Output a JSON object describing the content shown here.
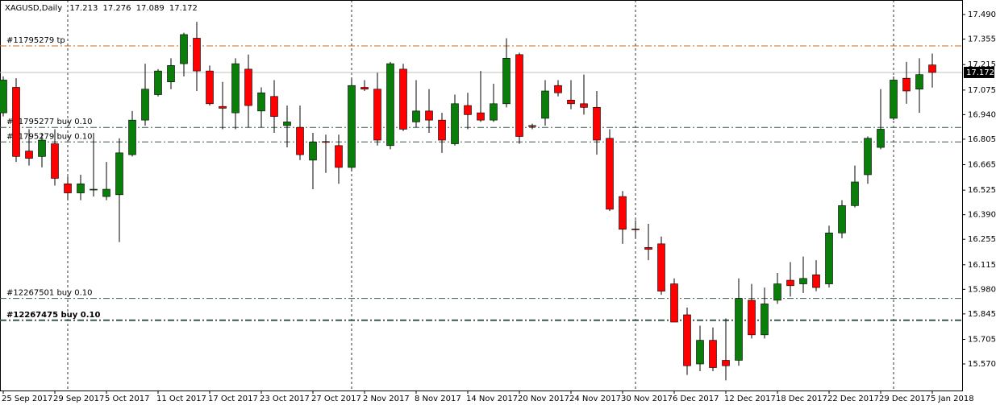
{
  "chart_data": {
    "type": "candlestick",
    "title": "XAGUSD,Daily",
    "categories": [
      "25 Sep 2017",
      null,
      null,
      null,
      "29 Sep 2017",
      null,
      null,
      null,
      "5 Oct 2017",
      null,
      null,
      null,
      "11 Oct 2017",
      null,
      null,
      null,
      "17 Oct 2017",
      null,
      null,
      null,
      "23 Oct 2017",
      null,
      null,
      null,
      "27 Oct 2017",
      null,
      null,
      null,
      "2 Nov 2017",
      null,
      null,
      null,
      "8 Nov 2017",
      null,
      null,
      null,
      "14 Nov 2017",
      null,
      null,
      null,
      "20 Nov 2017",
      null,
      null,
      null,
      "24 Nov 2017",
      null,
      null,
      null,
      "30 Nov 2017",
      null,
      null,
      null,
      "6 Dec 2017",
      null,
      null,
      null,
      "12 Dec 2017",
      null,
      null,
      null,
      "18 Dec 2017",
      null,
      null,
      null,
      "22 Dec 2017",
      null,
      null,
      null,
      "29 Dec 2017",
      null,
      null,
      null,
      "5 Jan 2018"
    ],
    "open": [
      16.95,
      17.09,
      16.74,
      16.71,
      16.78,
      16.56,
      16.51,
      16.53,
      16.49,
      16.5,
      16.72,
      16.91,
      17.05,
      17.12,
      17.22,
      17.36,
      17.18,
      16.985,
      16.95,
      17.19,
      16.96,
      17.04,
      16.88,
      16.87,
      16.69,
      16.792,
      16.77,
      16.65,
      17.09,
      17.08,
      16.77,
      17.19,
      16.9,
      16.96,
      16.91,
      16.78,
      16.99,
      16.95,
      16.91,
      17.0,
      17.27,
      16.88,
      16.92,
      17.1,
      17.02,
      17.0,
      16.98,
      16.81,
      16.49,
      16.312,
      16.21,
      16.23,
      16.01,
      15.84,
      15.57,
      15.7,
      15.59,
      15.59,
      15.92,
      15.73,
      15.92,
      16.03,
      16.01,
      16.06,
      16.01,
      16.29,
      16.44,
      16.61,
      16.76,
      16.92,
      17.14,
      17.08,
      17.213
    ],
    "high": [
      17.15,
      17.14,
      16.86,
      16.84,
      16.86,
      16.6,
      16.61,
      16.84,
      16.68,
      16.81,
      16.96,
      17.22,
      17.19,
      17.25,
      17.39,
      17.45,
      17.21,
      17.12,
      17.25,
      17.27,
      17.09,
      17.13,
      16.99,
      16.99,
      16.84,
      16.83,
      16.83,
      17.14,
      17.13,
      17.17,
      17.23,
      17.22,
      17.13,
      17.08,
      16.95,
      17.05,
      17.06,
      17.18,
      17.11,
      17.36,
      17.28,
      16.89,
      17.13,
      17.13,
      17.13,
      17.16,
      17.07,
      16.86,
      16.52,
      16.36,
      16.34,
      16.27,
      16.04,
      15.88,
      15.78,
      15.77,
      15.82,
      16.04,
      16.01,
      15.99,
      16.07,
      16.13,
      16.16,
      16.14,
      16.33,
      16.47,
      16.66,
      16.82,
      17.08,
      17.15,
      17.23,
      17.25,
      17.276
    ],
    "low": [
      16.93,
      16.68,
      16.66,
      16.65,
      16.55,
      16.47,
      16.47,
      16.49,
      16.47,
      16.24,
      16.71,
      16.88,
      17.04,
      17.08,
      17.15,
      17.07,
      16.99,
      16.86,
      16.86,
      16.87,
      16.87,
      16.84,
      16.76,
      16.69,
      16.53,
      16.62,
      16.56,
      16.63,
      17.07,
      16.77,
      16.75,
      16.85,
      16.87,
      16.84,
      16.73,
      16.77,
      16.86,
      16.9,
      16.9,
      16.98,
      16.78,
      16.86,
      16.88,
      17.04,
      16.97,
      16.94,
      16.72,
      16.41,
      16.23,
      16.26,
      16.14,
      15.95,
      15.8,
      15.51,
      15.53,
      15.53,
      15.48,
      15.56,
      15.71,
      15.71,
      15.9,
      15.94,
      15.96,
      15.97,
      15.99,
      16.26,
      16.43,
      16.56,
      16.75,
      16.91,
      17.0,
      16.95,
      17.089
    ],
    "close": [
      17.13,
      16.71,
      16.7,
      16.8,
      16.59,
      16.51,
      16.56,
      16.53,
      16.53,
      16.73,
      16.91,
      17.08,
      17.18,
      17.21,
      17.38,
      17.18,
      17.0,
      16.975,
      17.22,
      16.99,
      17.06,
      16.93,
      16.9,
      16.72,
      16.79,
      16.788,
      16.65,
      17.1,
      17.08,
      16.8,
      17.22,
      16.86,
      16.96,
      16.91,
      16.8,
      17.0,
      16.94,
      16.91,
      17.0,
      17.25,
      16.82,
      16.875,
      17.07,
      17.06,
      17.0,
      16.98,
      16.8,
      16.42,
      16.31,
      16.308,
      16.2,
      15.97,
      15.8,
      15.56,
      15.7,
      15.55,
      15.56,
      15.93,
      15.73,
      15.9,
      16.01,
      16.0,
      16.04,
      15.99,
      16.29,
      16.44,
      16.57,
      16.81,
      16.86,
      17.13,
      17.07,
      17.16,
      17.172
    ],
    "up_color": "#0a7d0a",
    "down_color": "#ff0000",
    "wick_color": "#000000",
    "ylim": [
      15.424,
      17.57
    ],
    "yticks": [
      {
        "value": 17.49,
        "label": "17.490"
      },
      17.355,
      17.215,
      17.075,
      {
        "value": 16.94,
        "label": "16.940"
      },
      16.805,
      16.665,
      16.525,
      {
        "value": 16.39,
        "label": "16.390"
      },
      16.255,
      16.115,
      {
        "value": 15.98,
        "label": "15.980"
      },
      15.845,
      15.705,
      {
        "value": 15.57,
        "label": "15.570"
      }
    ],
    "price_line_color": "#c0c0c0",
    "levels": [
      {
        "label": "#11795279 tp",
        "value": 17.318,
        "color": "#d2691e",
        "bold": false
      },
      {
        "label": "#11795277 buy 0.10",
        "value": 16.87,
        "color": "#3c5a4a",
        "bold": false
      },
      {
        "label": "#11795279 buy 0.10",
        "value": 16.79,
        "color": "#3c5a4a",
        "bold": false
      },
      {
        "label": "#12267501 buy 0.10",
        "value": 15.93,
        "color": "#3c5a4a",
        "bold": false
      },
      {
        "label": "#12267475 buy 0.10",
        "value": 15.81,
        "color": "#3c5a4a",
        "bold": true
      }
    ]
  }
}
